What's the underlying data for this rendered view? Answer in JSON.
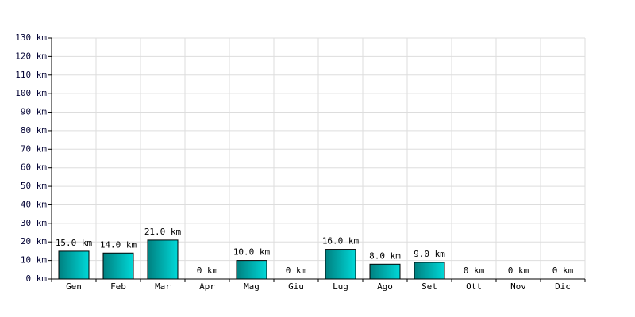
{
  "chart_data": {
    "type": "bar",
    "categories": [
      "Gen",
      "Feb",
      "Mar",
      "Apr",
      "Mag",
      "Giu",
      "Lug",
      "Ago",
      "Set",
      "Ott",
      "Nov",
      "Dic"
    ],
    "values": [
      15,
      14,
      21,
      0,
      10,
      0,
      16,
      8,
      9,
      0,
      0,
      0
    ],
    "value_labels": [
      "15.0 km",
      "14.0 km",
      "21.0 km",
      "0 km",
      "10.0 km",
      "0 km",
      "16.0 km",
      "8.0 km",
      "9.0 km",
      "0 km",
      "0 km",
      "0 km"
    ],
    "color": "#00d8d8",
    "ylim": [
      0,
      130
    ],
    "yticks": [
      {
        "value": 0,
        "label": "0 km"
      },
      {
        "value": 10,
        "label": "10 km"
      },
      {
        "value": 20,
        "label": "20 km"
      },
      {
        "value": 30,
        "label": "30 km"
      },
      {
        "value": 40,
        "label": "40 km"
      },
      {
        "value": 50,
        "label": "50 km"
      },
      {
        "value": 60,
        "label": "60 km"
      },
      {
        "value": 70,
        "label": "70 km"
      },
      {
        "value": 80,
        "label": "80 km"
      },
      {
        "value": 90,
        "label": "90 km"
      },
      {
        "value": 100,
        "label": "100 km"
      },
      {
        "value": 110,
        "label": "110 km"
      },
      {
        "value": 120,
        "label": "120 km"
      },
      {
        "value": 130,
        "label": "130 km"
      }
    ],
    "grid": true
  }
}
